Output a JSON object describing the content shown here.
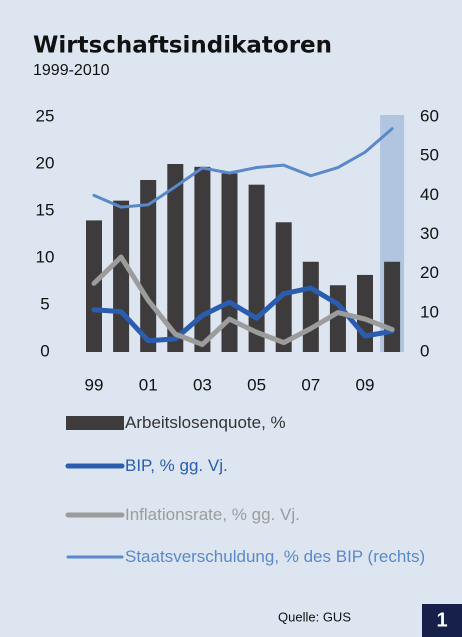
{
  "chart_data": {
    "type": "bar_line",
    "title": "Wirtschaftsindikatoren",
    "subtitle": "1999-2010",
    "categories": [
      "99",
      null,
      "01",
      null,
      "03",
      null,
      "05",
      null,
      "07",
      null,
      "09",
      null
    ],
    "ylim": [
      0,
      25
    ],
    "yticks": [
      0,
      5,
      10,
      15,
      20,
      25
    ],
    "y2lim": [
      0,
      60
    ],
    "y2ticks": [
      0,
      10,
      20,
      30,
      40,
      50,
      60
    ],
    "series": [
      {
        "name": "Arbeitslosenquote, %",
        "type": "bar",
        "color": "#3d3b3b",
        "values": [
          14.0,
          16.1,
          18.3,
          20.0,
          19.7,
          19.0,
          17.8,
          13.8,
          9.6,
          7.1,
          8.2,
          9.6
        ]
      },
      {
        "name": "BIP, % gg. Vj.",
        "type": "line",
        "color": "#2a5db0",
        "values": [
          4.5,
          4.3,
          1.2,
          1.4,
          3.9,
          5.3,
          3.6,
          6.2,
          6.8,
          5.1,
          1.7,
          2.2
        ]
      },
      {
        "name": "Inflationsrate, % gg. Vj.",
        "type": "line",
        "color": "#9c9c9c",
        "values": [
          7.3,
          10.1,
          5.5,
          1.9,
          0.8,
          3.5,
          2.1,
          1.0,
          2.5,
          4.2,
          3.5,
          2.4
        ]
      },
      {
        "name": "Staatsverschuldung, % des BIP (rechts)",
        "type": "line",
        "color": "#5a88cc",
        "axis": "y2",
        "values": [
          40,
          37,
          37.6,
          42.2,
          47,
          45.7,
          47.1,
          47.7,
          45,
          47.1,
          51,
          57
        ]
      }
    ],
    "source": "Quelle: GUS",
    "number": "1"
  }
}
